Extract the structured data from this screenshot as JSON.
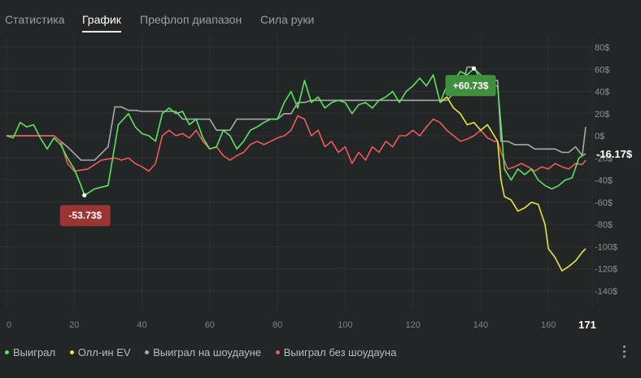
{
  "tabs": [
    {
      "label": "Статистика",
      "active": false
    },
    {
      "label": "График",
      "active": true
    },
    {
      "label": "Префлоп диапазон",
      "active": false
    },
    {
      "label": "Сила руки",
      "active": false
    }
  ],
  "chart_data": {
    "type": "line",
    "xlim": [
      0,
      171
    ],
    "ylim": [
      -140,
      80
    ],
    "x_ticks": [
      0,
      20,
      40,
      60,
      80,
      100,
      120,
      140,
      160
    ],
    "x_last_label": "171",
    "y_ticks": [
      80,
      60,
      40,
      20,
      0,
      -20,
      -40,
      -60,
      -80,
      -100,
      -120,
      -140
    ],
    "y_tick_labels": [
      "80$",
      "60$",
      "40$",
      "20$",
      "0$",
      "-20$",
      "-40$",
      "-60$",
      "-80$",
      "-100$",
      "-120$",
      "-140$"
    ],
    "max_label": {
      "text": "+60.73$",
      "x": 138,
      "y": 60.73,
      "color": "#3f8f3f"
    },
    "min_label": {
      "text": "-53.73$",
      "x": 23,
      "y": -53.73,
      "color": "#9b3434"
    },
    "current_label": {
      "text": "-16.17$",
      "y": -16.17
    },
    "series": [
      {
        "name": "Выиграл",
        "color": "#5ee35e",
        "points": [
          [
            0,
            0
          ],
          [
            2,
            -2
          ],
          [
            4,
            12
          ],
          [
            6,
            8
          ],
          [
            8,
            10
          ],
          [
            10,
            -2
          ],
          [
            12,
            -12
          ],
          [
            14,
            -2
          ],
          [
            16,
            -8
          ],
          [
            18,
            -20
          ],
          [
            20,
            -30
          ],
          [
            22,
            -45
          ],
          [
            23,
            -53.73
          ],
          [
            26,
            -48
          ],
          [
            30,
            -45
          ],
          [
            33,
            10
          ],
          [
            36,
            20
          ],
          [
            38,
            8
          ],
          [
            40,
            2
          ],
          [
            42,
            0
          ],
          [
            44,
            -5
          ],
          [
            46,
            20
          ],
          [
            48,
            25
          ],
          [
            50,
            20
          ],
          [
            52,
            22
          ],
          [
            54,
            10
          ],
          [
            56,
            15
          ],
          [
            58,
            -2
          ],
          [
            60,
            -12
          ],
          [
            62,
            -10
          ],
          [
            64,
            5
          ],
          [
            66,
            0
          ],
          [
            68,
            -12
          ],
          [
            70,
            -5
          ],
          [
            72,
            5
          ],
          [
            74,
            8
          ],
          [
            76,
            12
          ],
          [
            78,
            15
          ],
          [
            80,
            15
          ],
          [
            82,
            30
          ],
          [
            84,
            40
          ],
          [
            86,
            25
          ],
          [
            88,
            50
          ],
          [
            90,
            30
          ],
          [
            92,
            35
          ],
          [
            94,
            25
          ],
          [
            96,
            30
          ],
          [
            98,
            32
          ],
          [
            100,
            30
          ],
          [
            102,
            20
          ],
          [
            104,
            28
          ],
          [
            106,
            30
          ],
          [
            108,
            25
          ],
          [
            110,
            32
          ],
          [
            112,
            35
          ],
          [
            114,
            40
          ],
          [
            116,
            30
          ],
          [
            118,
            40
          ],
          [
            120,
            45
          ],
          [
            122,
            52
          ],
          [
            124,
            45
          ],
          [
            126,
            55
          ],
          [
            128,
            30
          ],
          [
            130,
            45
          ],
          [
            132,
            50
          ],
          [
            134,
            58
          ],
          [
            136,
            55
          ],
          [
            138,
            60.73
          ],
          [
            140,
            55
          ],
          [
            142,
            50
          ],
          [
            144,
            45
          ],
          [
            145,
            45
          ],
          [
            146,
            10
          ],
          [
            147,
            -30
          ],
          [
            149,
            -40
          ],
          [
            151,
            -30
          ],
          [
            153,
            -35
          ],
          [
            155,
            -30
          ],
          [
            157,
            -40
          ],
          [
            159,
            -45
          ],
          [
            161,
            -48
          ],
          [
            163,
            -45
          ],
          [
            165,
            -40
          ],
          [
            167,
            -38
          ],
          [
            169,
            -20
          ],
          [
            171,
            -16.17
          ]
        ]
      },
      {
        "name": "Олл-ин EV",
        "color": "#e6e640",
        "points": [
          [
            128,
            30
          ],
          [
            130,
            35
          ],
          [
            132,
            25
          ],
          [
            134,
            20
          ],
          [
            136,
            10
          ],
          [
            138,
            12
          ],
          [
            140,
            5
          ],
          [
            142,
            10
          ],
          [
            144,
            0
          ],
          [
            145,
            -5
          ],
          [
            146,
            -40
          ],
          [
            147,
            -55
          ],
          [
            149,
            -58
          ],
          [
            151,
            -68
          ],
          [
            153,
            -65
          ],
          [
            155,
            -60
          ],
          [
            157,
            -62
          ],
          [
            159,
            -80
          ],
          [
            160,
            -102
          ],
          [
            162,
            -110
          ],
          [
            164,
            -122
          ],
          [
            166,
            -118
          ],
          [
            168,
            -113
          ],
          [
            170,
            -105
          ],
          [
            171,
            -102
          ]
        ]
      },
      {
        "name": "Выиграл на шоудауне",
        "color": "#a8a8a8",
        "points": [
          [
            0,
            0
          ],
          [
            14,
            0
          ],
          [
            18,
            -10
          ],
          [
            22,
            -22
          ],
          [
            26,
            -22
          ],
          [
            30,
            -10
          ],
          [
            32,
            26
          ],
          [
            34,
            26
          ],
          [
            36,
            23
          ],
          [
            38,
            23
          ],
          [
            40,
            22
          ],
          [
            50,
            22
          ],
          [
            52,
            15
          ],
          [
            60,
            15
          ],
          [
            62,
            5
          ],
          [
            66,
            5
          ],
          [
            68,
            15
          ],
          [
            70,
            15
          ],
          [
            72,
            15
          ],
          [
            80,
            15
          ],
          [
            82,
            20
          ],
          [
            84,
            20
          ],
          [
            86,
            30
          ],
          [
            88,
            30
          ],
          [
            90,
            32
          ],
          [
            128,
            32
          ],
          [
            130,
            32
          ],
          [
            132,
            38
          ],
          [
            134,
            38
          ],
          [
            136,
            62
          ],
          [
            138,
            62
          ],
          [
            140,
            50
          ],
          [
            142,
            50
          ],
          [
            144,
            50
          ],
          [
            145,
            50
          ],
          [
            146,
            -5
          ],
          [
            148,
            -5
          ],
          [
            150,
            -8
          ],
          [
            152,
            -8
          ],
          [
            154,
            -8
          ],
          [
            156,
            -12
          ],
          [
            158,
            -12
          ],
          [
            160,
            -12
          ],
          [
            162,
            -12
          ],
          [
            164,
            -15
          ],
          [
            166,
            -15
          ],
          [
            168,
            -10
          ],
          [
            170,
            -18
          ],
          [
            171,
            8
          ]
        ]
      },
      {
        "name": "Выиграл без шоудауна",
        "color": "#ef5a5a",
        "points": [
          [
            0,
            0
          ],
          [
            14,
            0
          ],
          [
            16,
            -5
          ],
          [
            18,
            -25
          ],
          [
            20,
            -32
          ],
          [
            24,
            -30
          ],
          [
            28,
            -22
          ],
          [
            32,
            -20
          ],
          [
            34,
            -22
          ],
          [
            36,
            -20
          ],
          [
            38,
            -25
          ],
          [
            40,
            -28
          ],
          [
            42,
            -32
          ],
          [
            44,
            -25
          ],
          [
            46,
            0
          ],
          [
            48,
            5
          ],
          [
            50,
            0
          ],
          [
            52,
            2
          ],
          [
            54,
            -2
          ],
          [
            56,
            5
          ],
          [
            58,
            -5
          ],
          [
            60,
            -12
          ],
          [
            62,
            -10
          ],
          [
            64,
            -18
          ],
          [
            66,
            -22
          ],
          [
            68,
            -18
          ],
          [
            70,
            -15
          ],
          [
            72,
            -8
          ],
          [
            74,
            -5
          ],
          [
            76,
            -8
          ],
          [
            78,
            -5
          ],
          [
            80,
            -2
          ],
          [
            82,
            0
          ],
          [
            84,
            5
          ],
          [
            86,
            18
          ],
          [
            88,
            15
          ],
          [
            90,
            0
          ],
          [
            92,
            5
          ],
          [
            94,
            -10
          ],
          [
            96,
            -5
          ],
          [
            98,
            -15
          ],
          [
            100,
            -10
          ],
          [
            102,
            -25
          ],
          [
            104,
            -15
          ],
          [
            106,
            -22
          ],
          [
            108,
            -10
          ],
          [
            110,
            -15
          ],
          [
            112,
            -5
          ],
          [
            114,
            -10
          ],
          [
            116,
            0
          ],
          [
            118,
            0
          ],
          [
            120,
            5
          ],
          [
            122,
            0
          ],
          [
            124,
            8
          ],
          [
            126,
            15
          ],
          [
            128,
            12
          ],
          [
            130,
            5
          ],
          [
            132,
            0
          ],
          [
            134,
            -5
          ],
          [
            136,
            -3
          ],
          [
            138,
            0
          ],
          [
            140,
            5
          ],
          [
            142,
            -2
          ],
          [
            144,
            -5
          ],
          [
            145,
            -5
          ],
          [
            146,
            -15
          ],
          [
            148,
            -30
          ],
          [
            150,
            -28
          ],
          [
            152,
            -25
          ],
          [
            154,
            -28
          ],
          [
            156,
            -32
          ],
          [
            158,
            -28
          ],
          [
            160,
            -30
          ],
          [
            162,
            -25
          ],
          [
            164,
            -28
          ],
          [
            166,
            -30
          ],
          [
            168,
            -25
          ],
          [
            170,
            -26
          ],
          [
            171,
            -22
          ]
        ]
      }
    ]
  },
  "legend": [
    {
      "label": "Выиграл",
      "color": "#5ee35e"
    },
    {
      "label": "Олл-ин EV",
      "color": "#e6e640"
    },
    {
      "label": "Выиграл на шоудауне",
      "color": "#a8a8a8"
    },
    {
      "label": "Выиграл без шоудауна",
      "color": "#ef5a5a"
    }
  ],
  "menu_icon": "more-vertical-icon"
}
